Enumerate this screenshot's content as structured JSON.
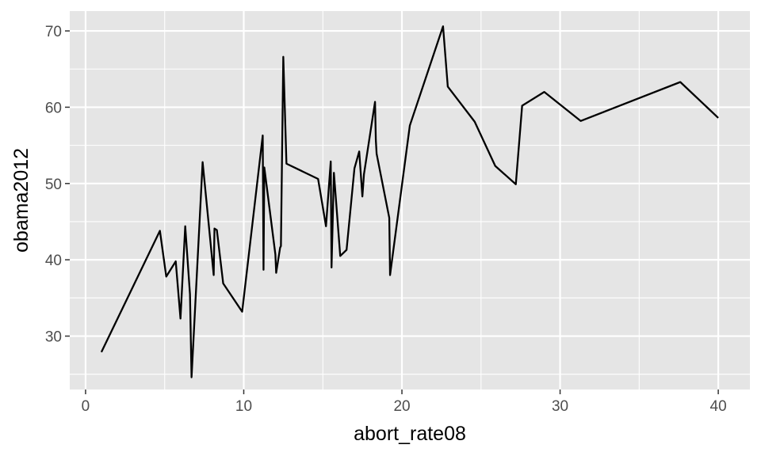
{
  "chart_data": {
    "type": "line",
    "title": "",
    "xlabel": "abort_rate08",
    "ylabel": "obama2012",
    "xlim": [
      -1.0,
      42.0
    ],
    "ylim": [
      23.0,
      72.6
    ],
    "x_ticks": [
      0,
      10,
      20,
      30,
      40
    ],
    "y_ticks": [
      30,
      40,
      50,
      60,
      70
    ],
    "x_tick_labels": [
      "0",
      "10",
      "20",
      "30",
      "40"
    ],
    "y_tick_labels": [
      "30",
      "40",
      "50",
      "60",
      "70"
    ],
    "grid": true,
    "legend": "none",
    "colors": {
      "panel": "#e5e5e5",
      "grid": "#ffffff",
      "line": "#000000",
      "tick_text": "#4d4d4d",
      "title_text": "#000000"
    },
    "series": [
      {
        "x": [
          1.0,
          4.7,
          5.1,
          5.7,
          6.0,
          6.3,
          6.6,
          6.7,
          7.4,
          8.1,
          8.15,
          8.3,
          8.7,
          9.9,
          11.2,
          11.25,
          11.3,
          12.0,
          12.05,
          12.3,
          12.35,
          12.5,
          12.7,
          14.7,
          15.2,
          15.5,
          15.55,
          15.7,
          16.1,
          16.5,
          17.0,
          17.3,
          17.5,
          17.6,
          18.3,
          18.35,
          18.4,
          19.2,
          19.25,
          20.5,
          22.6,
          22.9,
          24.6,
          25.9,
          27.2,
          27.6,
          29.0,
          31.3,
          37.6,
          40.0
        ],
        "y": [
          27.9,
          43.8,
          37.8,
          39.8,
          32.3,
          44.4,
          35.5,
          24.6,
          52.8,
          38.0,
          44.1,
          43.9,
          36.9,
          33.2,
          56.3,
          38.7,
          52.1,
          40.7,
          38.3,
          41.6,
          41.8,
          66.6,
          52.6,
          50.6,
          44.4,
          52.9,
          39.0,
          51.4,
          40.5,
          41.3,
          52.0,
          54.2,
          48.3,
          51.2,
          60.7,
          55.7,
          53.9,
          45.5,
          38.0,
          57.6,
          70.6,
          62.7,
          58.1,
          52.3,
          49.9,
          60.2,
          62.0,
          58.2,
          63.3,
          58.6
        ]
      }
    ]
  }
}
